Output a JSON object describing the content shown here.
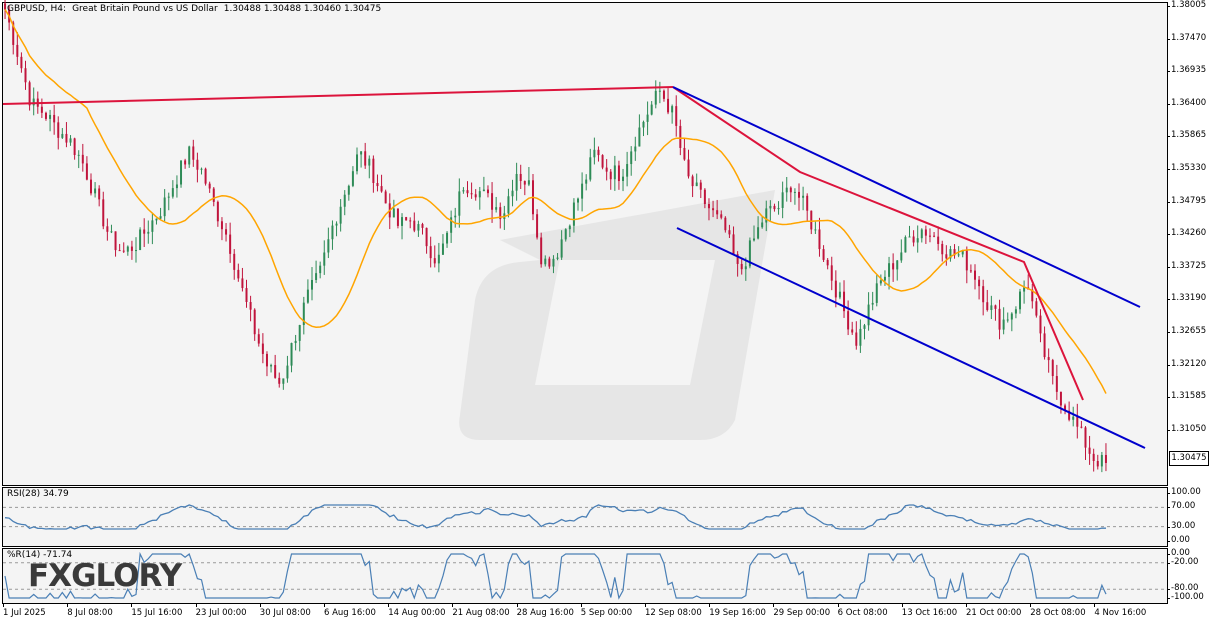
{
  "header": {
    "symbol": "GBPUSD, H4:",
    "description": "Great Britain Pound vs US Dollar",
    "ohlc": "1.30488 1.30488 1.30460 1.30475"
  },
  "current_price": "1.30475",
  "logo_text": "FXGLORY",
  "colors": {
    "bull_candle": "#2e8b57",
    "bear_candle": "#c0143c",
    "moving_average": "#ffa500",
    "trendline_red": "#dc143c",
    "channel_blue": "#0000cd",
    "oscillator": "#4a7fb5",
    "watermark": "#e4e4e4"
  },
  "rsi": {
    "label": "RSI(28) 34.79",
    "levels": [
      "100.00",
      "70.00",
      "30.00",
      "0.00"
    ]
  },
  "wpr": {
    "label": "%R(14) -71.74",
    "levels": [
      "0.00",
      "-20.00",
      "-80.00",
      "-100.00"
    ]
  },
  "chart_data": {
    "type": "candlestick",
    "symbol": "GBPUSD",
    "timeframe": "H4",
    "y_ticks": [
      "1.38005",
      "1.37470",
      "1.36935",
      "1.36400",
      "1.35865",
      "1.35330",
      "1.34795",
      "1.34260",
      "1.33725",
      "1.33190",
      "1.32655",
      "1.32120",
      "1.31585",
      "1.31050"
    ],
    "x_ticks": [
      "1 Jul 2025",
      "8 Jul 08:00",
      "15 Jul 16:00",
      "23 Jul 00:00",
      "30 Jul 08:00",
      "6 Aug 16:00",
      "14 Aug 00:00",
      "21 Aug 08:00",
      "28 Aug 16:00",
      "5 Sep 00:00",
      "12 Sep 08:00",
      "19 Sep 16:00",
      "29 Sep 00:00",
      "6 Oct 08:00",
      "13 Oct 16:00",
      "21 Oct 00:00",
      "28 Oct 08:00",
      "4 Nov 16:00"
    ],
    "ylim": [
      1.3023,
      1.3805
    ],
    "price_path": [
      1.3795,
      1.372,
      1.364,
      1.3625,
      1.3598,
      1.3578,
      1.354,
      1.348,
      1.342,
      1.3395,
      1.341,
      1.344,
      1.347,
      1.3515,
      1.356,
      1.353,
      1.347,
      1.342,
      1.334,
      1.327,
      1.321,
      1.318,
      1.325,
      1.332,
      1.336,
      1.344,
      1.35,
      1.356,
      1.353,
      1.348,
      1.344,
      1.345,
      1.342,
      1.338,
      1.344,
      1.351,
      1.35,
      1.348,
      1.346,
      1.353,
      1.3505,
      1.338,
      1.339,
      1.345,
      1.35,
      1.356,
      1.353,
      1.3525,
      1.358,
      1.3625,
      1.3662,
      1.362,
      1.352,
      1.349,
      1.346,
      1.343,
      1.336,
      1.341,
      1.346,
      1.347,
      1.351,
      1.347,
      1.342,
      1.336,
      1.33,
      1.325,
      1.331,
      1.3355,
      1.3385,
      1.342,
      1.3435,
      1.342,
      1.3395,
      1.339,
      1.336,
      1.331,
      1.328,
      1.3305,
      1.335,
      1.325,
      1.318,
      1.314,
      1.31,
      1.306,
      1.3047
    ],
    "annotations": [
      "red trendline from early July high",
      "descending blue channel from mid-September",
      "red descending trendline",
      "orange moving average"
    ]
  }
}
